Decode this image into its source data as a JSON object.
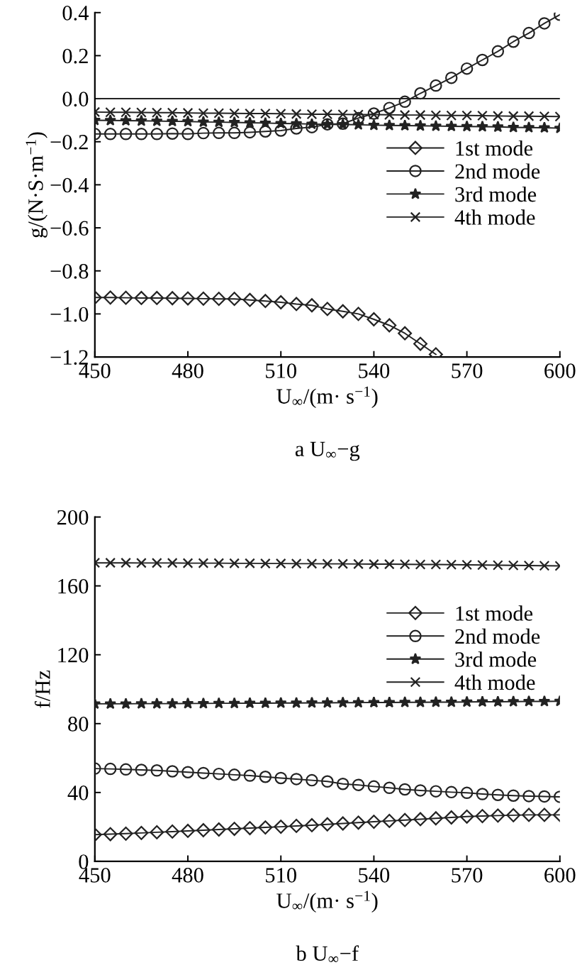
{
  "chart_data": [
    {
      "type": "line",
      "xlabel": "U$_{∞}$/(m· s$^{−1}$)",
      "ylabel": "g/(N·S·m$^{−1}$)",
      "annotations": [
        "a U$_{∞}$−g"
      ],
      "x": [
        450,
        455,
        460,
        465,
        470,
        475,
        480,
        485,
        490,
        495,
        500,
        505,
        510,
        515,
        520,
        525,
        530,
        535,
        540,
        545,
        550,
        555,
        560,
        565,
        570,
        575,
        580,
        585,
        590,
        595,
        600
      ],
      "xlim": [
        450,
        600
      ],
      "xticks": [
        450,
        480,
        510,
        540,
        570,
        600
      ],
      "ylim": [
        -1.2,
        0.4
      ],
      "yticks": [
        {
          "value": -1.2,
          "label": "−1.2"
        },
        {
          "value": -1.0,
          "label": "−1.0"
        },
        {
          "value": -0.8,
          "label": "−0.8"
        },
        {
          "value": -0.6,
          "label": "−0.6"
        },
        {
          "value": -0.4,
          "label": "−0.4"
        },
        {
          "value": -0.2,
          "label": "−0.2"
        },
        {
          "value": 0.0,
          "label": "0.0"
        },
        {
          "value": 0.2,
          "label": "0.2"
        },
        {
          "value": 0.4,
          "label": "0.4"
        }
      ],
      "ref_lines": [
        {
          "axis": "y",
          "value": 0,
          "color": "#222222"
        }
      ],
      "legend": "center right",
      "grid": false,
      "line_style": "solid",
      "series": [
        {
          "name": "1st mode",
          "color": "#222222",
          "marker": "diamond",
          "values": [
            -0.924,
            -0.924,
            -0.925,
            -0.926,
            -0.926,
            -0.927,
            -0.928,
            -0.929,
            -0.93,
            -0.93,
            -0.935,
            -0.94,
            -0.946,
            -0.954,
            -0.96,
            -0.977,
            -0.988,
            -1.0,
            -1.025,
            -1.053,
            -1.09,
            -1.139,
            -1.188,
            null,
            null,
            null,
            null,
            null,
            null,
            null,
            null
          ]
        },
        {
          "name": "2nd mode",
          "color": "#222222",
          "marker": "circle",
          "values": [
            -0.164,
            -0.164,
            -0.164,
            -0.164,
            -0.164,
            -0.162,
            -0.164,
            -0.16,
            -0.159,
            -0.159,
            -0.156,
            -0.152,
            -0.148,
            -0.138,
            -0.132,
            -0.119,
            -0.116,
            -0.09,
            -0.069,
            -0.043,
            -0.014,
            0.025,
            0.061,
            0.097,
            0.14,
            0.18,
            0.22,
            0.265,
            0.305,
            0.35,
            0.39
          ]
        },
        {
          "name": "3rd mode",
          "color": "#222222",
          "marker": "star",
          "values": [
            -0.1,
            -0.101,
            -0.102,
            -0.103,
            -0.104,
            -0.105,
            -0.106,
            -0.108,
            -0.109,
            -0.11,
            -0.112,
            -0.113,
            -0.115,
            -0.116,
            -0.118,
            -0.119,
            -0.12,
            -0.121,
            -0.123,
            -0.124,
            -0.125,
            -0.126,
            -0.127,
            -0.128,
            -0.129,
            -0.13,
            -0.131,
            -0.133,
            -0.134,
            -0.135,
            -0.137
          ]
        },
        {
          "name": "4th mode",
          "color": "#222222",
          "marker": "cross",
          "values": [
            -0.062,
            -0.063,
            -0.063,
            -0.064,
            -0.065,
            -0.065,
            -0.066,
            -0.067,
            -0.067,
            -0.068,
            -0.069,
            -0.069,
            -0.07,
            -0.071,
            -0.072,
            -0.072,
            -0.073,
            -0.074,
            -0.074,
            -0.075,
            -0.076,
            -0.076,
            -0.077,
            -0.078,
            -0.078,
            -0.079,
            -0.08,
            -0.081,
            -0.081,
            -0.082,
            -0.083
          ]
        }
      ]
    },
    {
      "type": "line",
      "xlabel": "U$_{∞}$/(m· s$^{−1}$)",
      "ylabel": "f/Hz",
      "annotations": [
        "b U$_{∞}$−f"
      ],
      "x": [
        450,
        455,
        460,
        465,
        470,
        475,
        480,
        485,
        490,
        495,
        500,
        505,
        510,
        515,
        520,
        525,
        530,
        535,
        540,
        545,
        550,
        555,
        560,
        565,
        570,
        575,
        580,
        585,
        590,
        595,
        600
      ],
      "xlim": [
        450,
        600
      ],
      "xticks": [
        450,
        480,
        510,
        540,
        570,
        600
      ],
      "ylim": [
        0,
        200
      ],
      "yticks": [
        0,
        40,
        80,
        120,
        160,
        200
      ],
      "legend": "top right",
      "grid": false,
      "line_style": "solid",
      "series": [
        {
          "name": "1st mode",
          "color": "#222222",
          "marker": "diamond",
          "values": [
            15.5,
            15.8,
            16.1,
            16.5,
            16.9,
            17.3,
            17.7,
            18.1,
            18.5,
            18.9,
            19.3,
            19.7,
            20.1,
            20.6,
            21.0,
            21.5,
            22.0,
            22.5,
            23.0,
            23.5,
            24.0,
            24.5,
            25.0,
            25.5,
            26.0,
            26.3,
            26.6,
            26.8,
            27.0,
            27.0,
            27.0
          ]
        },
        {
          "name": "2nd mode",
          "color": "#222222",
          "marker": "circle",
          "values": [
            53.9,
            53.7,
            53.4,
            53.1,
            52.8,
            52.3,
            51.8,
            51.3,
            50.8,
            50.3,
            49.8,
            49.1,
            48.4,
            47.8,
            47.1,
            46.4,
            45.0,
            44.4,
            43.5,
            42.7,
            41.8,
            41.2,
            40.7,
            40.2,
            39.8,
            39.1,
            38.6,
            38.2,
            37.9,
            37.7,
            37.5
          ]
        },
        {
          "name": "3rd mode",
          "color": "#222222",
          "marker": "star",
          "values": [
            91.5,
            91.5,
            91.5,
            91.6,
            91.6,
            91.6,
            91.7,
            91.7,
            91.8,
            91.8,
            91.9,
            91.9,
            92.0,
            92.0,
            92.1,
            92.1,
            92.2,
            92.2,
            92.3,
            92.3,
            92.4,
            92.4,
            92.5,
            92.5,
            92.6,
            92.7,
            92.7,
            92.8,
            92.9,
            92.9,
            93.0
          ]
        },
        {
          "name": "4th mode",
          "color": "#222222",
          "marker": "cross",
          "values": [
            173.4,
            173.4,
            173.4,
            173.3,
            173.3,
            173.3,
            173.2,
            173.2,
            173.2,
            173.1,
            173.1,
            173.0,
            173.0,
            172.9,
            172.9,
            172.8,
            172.8,
            172.7,
            172.6,
            172.6,
            172.5,
            172.4,
            172.4,
            172.3,
            172.2,
            172.1,
            172.0,
            171.9,
            171.8,
            171.7,
            171.6
          ]
        }
      ]
    }
  ]
}
